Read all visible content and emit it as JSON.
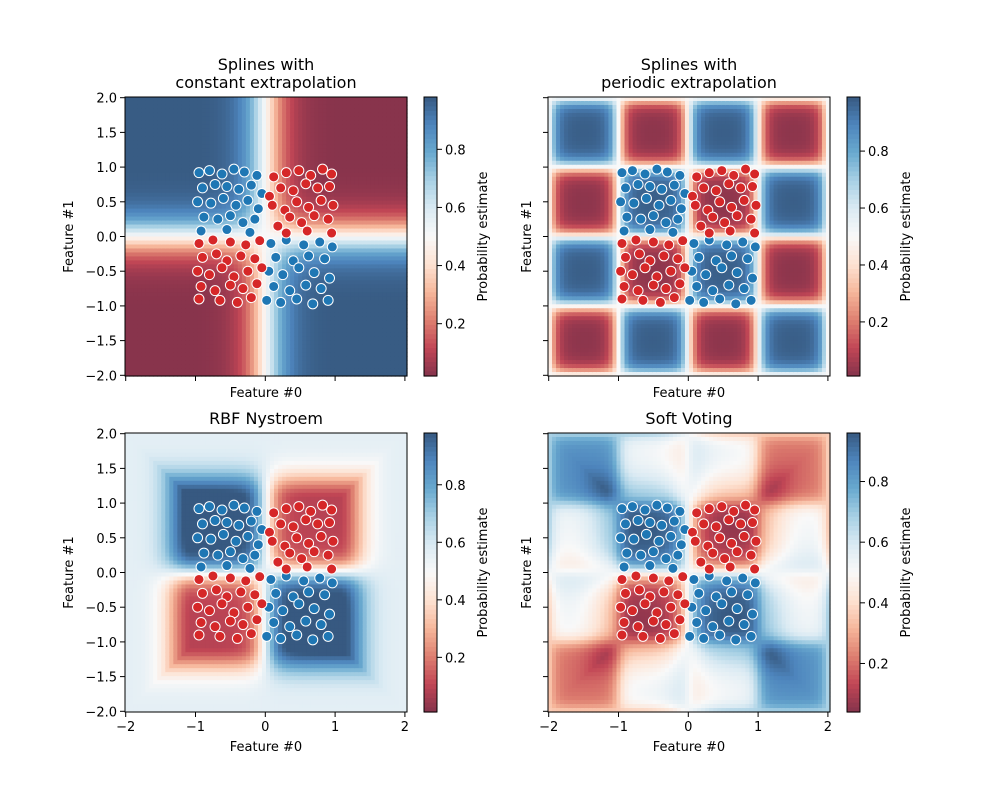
{
  "chart_data": [
    {
      "type": "heatmap",
      "title_lines": [
        "Splines with",
        "constant extrapolation"
      ],
      "xlabel": "Feature #0",
      "ylabel": "Feature #1",
      "xlim": [
        -2.01,
        2.03
      ],
      "ylim": [
        -2.01,
        2.01
      ],
      "xticks": [
        -2,
        -1,
        0,
        1,
        2
      ],
      "xtick_labels": [],
      "yticks": [
        2.0,
        1.5,
        1.0,
        0.5,
        0.0,
        -0.5,
        -1.0,
        -1.5,
        -2.0
      ],
      "ytick_labels": [
        "2.0",
        "1.5",
        "1.0",
        "0.5",
        "0.0",
        "−0.5",
        "−1.0",
        "−1.5",
        "−2.0"
      ],
      "colormap": "RdBu",
      "alpha": 0.8,
      "colorbar": {
        "label": "Probability estimate",
        "range": [
          0.02,
          0.98
        ],
        "ticks": [
          0.2,
          0.4,
          0.6,
          0.8
        ],
        "tick_labels": [
          "0.2",
          "0.4",
          "0.6",
          "0.8"
        ]
      }
    },
    {
      "type": "heatmap",
      "title_lines": [
        "Splines with",
        "periodic extrapolation"
      ],
      "xlabel": "Feature #0",
      "ylabel": "Feature #1",
      "xlim": [
        -2.01,
        2.03
      ],
      "ylim": [
        -2.01,
        2.01
      ],
      "xticks": [
        -2,
        -1,
        0,
        1,
        2
      ],
      "xtick_labels": [],
      "yticks": [
        2.0,
        1.5,
        1.0,
        0.5,
        0.0,
        -0.5,
        -1.0,
        -1.5,
        -2.0
      ],
      "ytick_labels": [],
      "colormap": "RdBu",
      "alpha": 0.8,
      "colorbar": {
        "label": "Probability estimate",
        "range": [
          0.01,
          0.99
        ],
        "ticks": [
          0.2,
          0.4,
          0.6,
          0.8
        ],
        "tick_labels": [
          "0.2",
          "0.4",
          "0.6",
          "0.8"
        ]
      }
    },
    {
      "type": "heatmap",
      "title_lines": [
        "RBF Nystroem"
      ],
      "xlabel": "Feature #0",
      "ylabel": "Feature #1",
      "xlim": [
        -2.01,
        2.03
      ],
      "ylim": [
        -2.01,
        2.01
      ],
      "xticks": [
        -2,
        -1,
        0,
        1,
        2
      ],
      "xtick_labels": [
        "−2",
        "−1",
        "0",
        "1",
        "2"
      ],
      "yticks": [
        2.0,
        1.5,
        1.0,
        0.5,
        0.0,
        -0.5,
        -1.0,
        -1.5,
        -2.0
      ],
      "ytick_labels": [
        "2.0",
        "1.5",
        "1.0",
        "0.5",
        "0.0",
        "−0.5",
        "−1.0",
        "−1.5",
        "−2.0"
      ],
      "colormap": "RdBu",
      "alpha": 0.8,
      "colorbar": {
        "label": "Probability estimate",
        "range": [
          0.01,
          0.98
        ],
        "ticks": [
          0.2,
          0.4,
          0.6,
          0.8
        ],
        "tick_labels": [
          "0.2",
          "0.4",
          "0.6",
          "0.8"
        ]
      }
    },
    {
      "type": "heatmap",
      "title_lines": [
        "Soft Voting"
      ],
      "xlabel": "Feature #0",
      "ylabel": "Feature #1",
      "xlim": [
        -2.01,
        2.03
      ],
      "ylim": [
        -2.01,
        2.01
      ],
      "xticks": [
        -2,
        -1,
        0,
        1,
        2
      ],
      "xtick_labels": [
        "−2",
        "−1",
        "0",
        "1",
        "2"
      ],
      "yticks": [
        2.0,
        1.5,
        1.0,
        0.5,
        0.0,
        -0.5,
        -1.0,
        -1.5,
        -2.0
      ],
      "ytick_labels": [],
      "colormap": "RdBu",
      "alpha": 0.8,
      "colorbar": {
        "label": "Probability estimate",
        "range": [
          0.04,
          0.96
        ],
        "ticks": [
          0.2,
          0.4,
          0.6,
          0.8
        ],
        "tick_labels": [
          "0.2",
          "0.4",
          "0.6",
          "0.8"
        ]
      }
    }
  ],
  "points": [
    {
      "color": "#1f77b4",
      "xy": [
        [
          -0.95,
          0.92
        ],
        [
          -0.8,
          0.95
        ],
        [
          -0.62,
          0.9
        ],
        [
          -0.45,
          0.97
        ],
        [
          -0.3,
          0.93
        ],
        [
          -0.12,
          0.88
        ],
        [
          -0.9,
          0.7
        ],
        [
          -0.72,
          0.75
        ],
        [
          -0.55,
          0.72
        ],
        [
          -0.38,
          0.68
        ],
        [
          -0.2,
          0.74
        ],
        [
          -0.05,
          0.62
        ],
        [
          -0.97,
          0.5
        ],
        [
          -0.78,
          0.48
        ],
        [
          -0.6,
          0.55
        ],
        [
          -0.42,
          0.45
        ],
        [
          -0.25,
          0.52
        ],
        [
          -0.1,
          0.4
        ],
        [
          -0.88,
          0.28
        ],
        [
          -0.68,
          0.25
        ],
        [
          -0.5,
          0.3
        ],
        [
          -0.32,
          0.2
        ],
        [
          -0.15,
          0.25
        ],
        [
          -0.92,
          0.08
        ],
        [
          -0.55,
          0.1
        ],
        [
          -0.22,
          0.06
        ],
        [
          0.08,
          -0.1
        ],
        [
          0.3,
          -0.05
        ],
        [
          0.55,
          -0.12
        ],
        [
          0.78,
          -0.08
        ],
        [
          0.96,
          -0.15
        ],
        [
          0.15,
          -0.3
        ],
        [
          0.4,
          -0.35
        ],
        [
          0.62,
          -0.28
        ],
        [
          0.85,
          -0.32
        ],
        [
          0.05,
          -0.5
        ],
        [
          0.25,
          -0.55
        ],
        [
          0.48,
          -0.45
        ],
        [
          0.7,
          -0.52
        ],
        [
          0.92,
          -0.6
        ],
        [
          0.12,
          -0.72
        ],
        [
          0.35,
          -0.78
        ],
        [
          0.58,
          -0.7
        ],
        [
          0.8,
          -0.75
        ],
        [
          0.02,
          -0.92
        ],
        [
          0.22,
          -0.95
        ],
        [
          0.45,
          -0.9
        ],
        [
          0.68,
          -0.97
        ],
        [
          0.9,
          -0.92
        ]
      ]
    },
    {
      "color": "#d62728",
      "xy": [
        [
          0.95,
          0.9
        ],
        [
          0.82,
          0.97
        ],
        [
          0.65,
          0.88
        ],
        [
          0.48,
          0.95
        ],
        [
          0.3,
          0.92
        ],
        [
          0.12,
          0.86
        ],
        [
          0.92,
          0.72
        ],
        [
          0.75,
          0.7
        ],
        [
          0.58,
          0.76
        ],
        [
          0.4,
          0.66
        ],
        [
          0.22,
          0.7
        ],
        [
          0.06,
          0.58
        ],
        [
          0.97,
          0.45
        ],
        [
          0.8,
          0.52
        ],
        [
          0.62,
          0.42
        ],
        [
          0.45,
          0.5
        ],
        [
          0.28,
          0.38
        ],
        [
          0.1,
          0.45
        ],
        [
          0.9,
          0.25
        ],
        [
          0.7,
          0.3
        ],
        [
          0.52,
          0.2
        ],
        [
          0.35,
          0.28
        ],
        [
          0.18,
          0.15
        ],
        [
          0.95,
          0.05
        ],
        [
          0.6,
          0.08
        ],
        [
          0.3,
          0.05
        ],
        [
          -0.95,
          -0.1
        ],
        [
          -0.75,
          -0.05
        ],
        [
          -0.5,
          -0.08
        ],
        [
          -0.28,
          -0.12
        ],
        [
          -0.08,
          -0.06
        ],
        [
          -0.9,
          -0.3
        ],
        [
          -0.7,
          -0.25
        ],
        [
          -0.55,
          -0.35
        ],
        [
          -0.35,
          -0.28
        ],
        [
          -0.15,
          -0.32
        ],
        [
          -0.97,
          -0.5
        ],
        [
          -0.8,
          -0.55
        ],
        [
          -0.62,
          -0.45
        ],
        [
          -0.45,
          -0.58
        ],
        [
          -0.25,
          -0.5
        ],
        [
          -0.05,
          -0.45
        ],
        [
          -0.92,
          -0.72
        ],
        [
          -0.72,
          -0.78
        ],
        [
          -0.5,
          -0.7
        ],
        [
          -0.32,
          -0.75
        ],
        [
          -0.12,
          -0.68
        ],
        [
          -0.95,
          -0.9
        ],
        [
          -0.65,
          -0.92
        ],
        [
          -0.4,
          -0.95
        ],
        [
          -0.2,
          -0.88
        ]
      ]
    }
  ]
}
